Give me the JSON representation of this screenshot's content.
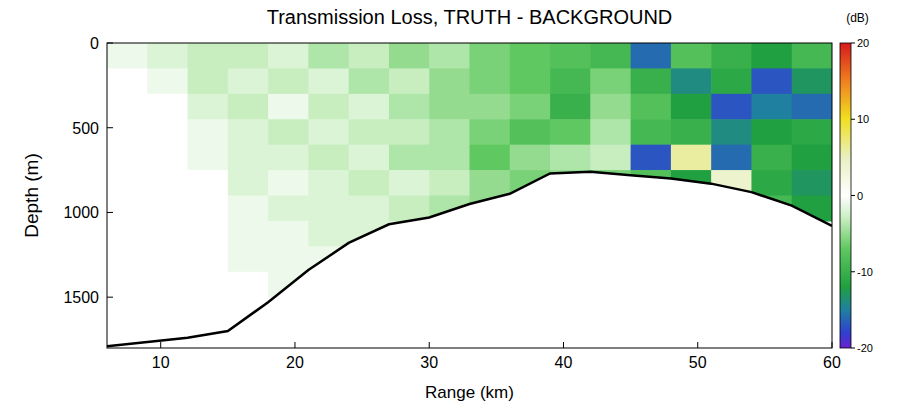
{
  "chart_data": {
    "type": "heatmap",
    "title": "Transmission Loss, TRUTH - BACKGROUND",
    "x_label": "Range (km)",
    "y_label": "Depth (m)",
    "xlim": [
      6,
      60
    ],
    "ylim": [
      1800,
      0
    ],
    "xticks": [
      10,
      20,
      30,
      40,
      50,
      60
    ],
    "yticks": [
      0,
      500,
      1000,
      1500
    ],
    "x": [
      7.5,
      10.5,
      13.5,
      16.5,
      19.5,
      22.5,
      25.5,
      28.5,
      31.5,
      34.5,
      37.5,
      40.5,
      43.5,
      46.5,
      49.5,
      52.5,
      55.5,
      58.5
    ],
    "y": [
      75,
      225,
      375,
      525,
      675,
      825,
      975,
      1125,
      1275,
      1425,
      1575,
      1725
    ],
    "values": [
      [
        -1,
        -2,
        -3,
        -3,
        -2,
        -4,
        -3,
        -5,
        -4,
        -6,
        -7,
        -8,
        -9,
        -16,
        -8,
        -10,
        -12,
        -9
      ],
      [
        0,
        -1,
        -3,
        -2,
        -3,
        -2,
        -4,
        -3,
        -5,
        -6,
        -7,
        -9,
        -6,
        -10,
        -14,
        -11,
        -17,
        -13
      ],
      [
        0,
        0,
        -2,
        -3,
        -1,
        -3,
        -2,
        -4,
        -5,
        -5,
        -6,
        -10,
        -5,
        -8,
        -12,
        -17,
        -15,
        -16
      ],
      [
        0,
        0,
        -1,
        -2,
        -3,
        -2,
        -3,
        -3,
        -4,
        -6,
        -8,
        -7,
        -4,
        -9,
        -10,
        -14,
        -12,
        -11
      ],
      [
        0,
        0,
        -1,
        -2,
        -2,
        -3,
        -2,
        -4,
        -4,
        -7,
        -5,
        -4,
        -3,
        -17,
        6,
        -16,
        -10,
        -12
      ],
      [
        0,
        0,
        0,
        -2,
        -1,
        -2,
        -3,
        -2,
        -3,
        -5,
        -6,
        -5,
        -6,
        -8,
        -12,
        4,
        -11,
        -13
      ],
      [
        0,
        0,
        0,
        -1,
        -2,
        -2,
        -2,
        -3,
        -4,
        -5,
        null,
        null,
        null,
        null,
        null,
        null,
        -9,
        -12
      ],
      [
        0,
        0,
        0,
        -1,
        -1,
        -2,
        -2,
        null,
        null,
        null,
        null,
        null,
        null,
        null,
        null,
        null,
        null,
        null
      ],
      [
        0,
        0,
        0,
        -1,
        -1,
        -1,
        null,
        null,
        null,
        null,
        null,
        null,
        null,
        null,
        null,
        null,
        null,
        null
      ],
      [
        0,
        0,
        0,
        0,
        -1,
        null,
        null,
        null,
        null,
        null,
        null,
        null,
        null,
        null,
        null,
        null,
        null,
        null
      ],
      [
        0,
        0,
        0,
        0,
        null,
        null,
        null,
        null,
        null,
        null,
        null,
        null,
        null,
        null,
        null,
        null,
        null,
        null
      ],
      [
        0,
        0,
        0,
        null,
        null,
        null,
        null,
        null,
        null,
        null,
        null,
        null,
        null,
        null,
        null,
        null,
        null,
        null
      ]
    ],
    "colorbar": {
      "label": "(dB)",
      "range": [
        -20,
        20
      ],
      "ticks": [
        -20,
        -10,
        0,
        10,
        20
      ]
    },
    "bathymetry": {
      "x": [
        6,
        12,
        15,
        18,
        21,
        24,
        27,
        30,
        33,
        36,
        39,
        42,
        45,
        48,
        51,
        54,
        57,
        60
      ],
      "y": [
        1790,
        1740,
        1700,
        1530,
        1340,
        1180,
        1070,
        1030,
        950,
        890,
        770,
        760,
        780,
        800,
        830,
        880,
        960,
        1080
      ]
    }
  }
}
